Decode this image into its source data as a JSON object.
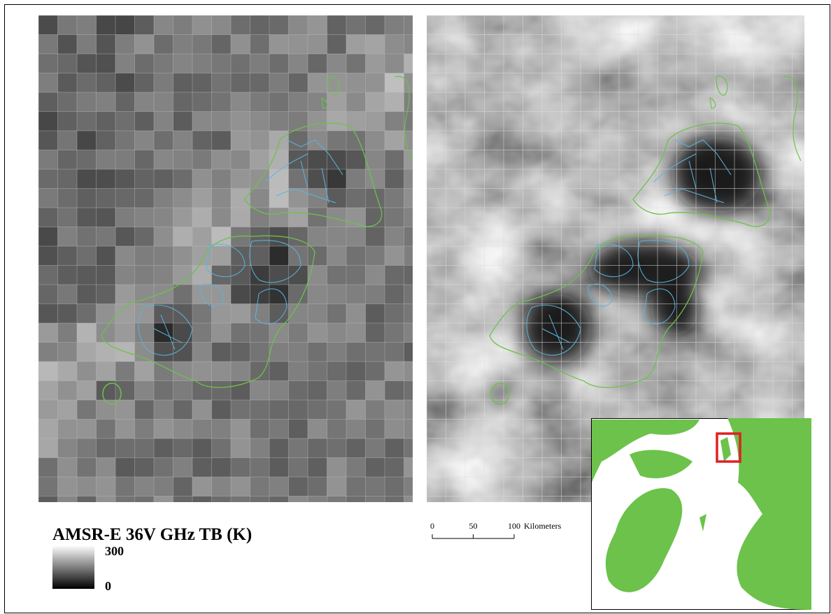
{
  "legend": {
    "title": "AMSR-E 36V GHz TB (K)",
    "max": 300,
    "min": 0
  },
  "scale_bar": {
    "ticks": [
      0,
      50,
      100
    ],
    "unit": "Kilometers"
  }
}
